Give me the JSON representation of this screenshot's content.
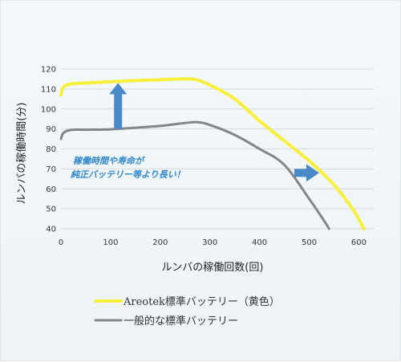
{
  "chart_data": {
    "type": "line",
    "xlabel": "ルンバの稼働回数(回)",
    "ylabel": "ルンバの稼働時間(分)",
    "xlim": [
      0,
      630
    ],
    "ylim": [
      40,
      120
    ],
    "x_ticks": [
      0,
      100,
      200,
      300,
      400,
      500,
      600
    ],
    "y_ticks": [
      40,
      50,
      60,
      70,
      80,
      90,
      100,
      110,
      120
    ],
    "grid": "horizontal",
    "legend_position": "bottom",
    "series": [
      {
        "name": "Areotek標準バッテリー（黄色）",
        "color": "#f7ef3c",
        "x": [
          0,
          5,
          20,
          50,
          100,
          150,
          200,
          240,
          270,
          300,
          350,
          400,
          450,
          500,
          550,
          590,
          610
        ],
        "y": [
          107,
          111,
          112.5,
          113,
          113.6,
          114.2,
          114.6,
          115,
          114.8,
          112,
          105,
          94,
          84,
          74,
          62,
          49,
          40
        ]
      },
      {
        "name": "一般的な標準バッテリー",
        "color": "#858585",
        "x": [
          0,
          5,
          20,
          50,
          100,
          150,
          200,
          250,
          275,
          300,
          350,
          400,
          450,
          500,
          530,
          540
        ],
        "y": [
          85,
          88,
          89.5,
          89.6,
          89.8,
          90.6,
          91.5,
          93,
          93.4,
          92,
          87,
          80,
          72,
          55,
          44,
          40
        ]
      }
    ],
    "annotations": [
      {
        "lines": [
          "稼働時間や寿命が",
          "純正バッテリー等より長い！"
        ],
        "color": "#2f86c8"
      }
    ],
    "arrows": [
      {
        "direction": "up",
        "x": 115,
        "y_from": 90,
        "y_to": 113,
        "color": "#4a89c8"
      },
      {
        "direction": "right",
        "y": 68,
        "x_from": 470,
        "x_to": 520,
        "color": "#4a89c8"
      }
    ]
  }
}
